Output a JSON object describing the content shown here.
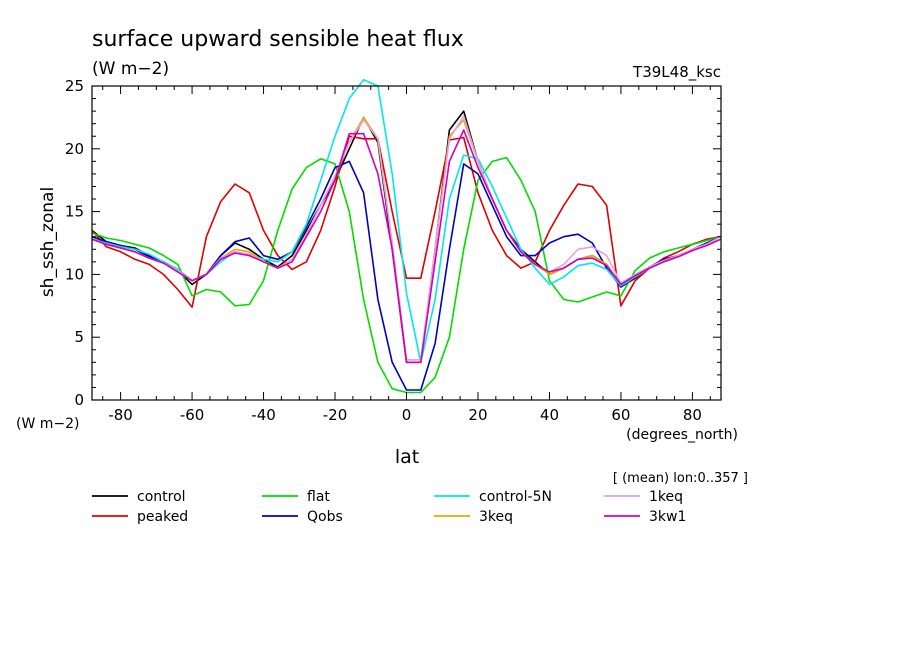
{
  "header": {
    "title": "surface upward sensible heat flux",
    "units": "(W m−2)",
    "experiment": "T39L48_ksc"
  },
  "axes": {
    "y_name": "sh_ssh_zonal",
    "y_units": "(W m−2)",
    "x_name": "lat",
    "x_units": "(degrees_north)"
  },
  "footnote": "[ (mean) lon:0..357 ]",
  "chart_data": {
    "type": "line",
    "title": "surface upward sensible heat flux",
    "subtitle": "(W m−2)",
    "xlabel": "lat",
    "ylabel": "sh_ssh_zonal",
    "xlim": [
      -88,
      88
    ],
    "ylim": [
      0,
      25
    ],
    "x_ticks": [
      -80,
      -60,
      -40,
      -20,
      0,
      20,
      40,
      60,
      80
    ],
    "y_ticks": [
      0,
      5,
      10,
      15,
      20,
      25
    ],
    "grid": false,
    "legend_position": "bottom",
    "x": [
      -88,
      -84,
      -80,
      -76,
      -72,
      -68,
      -64,
      -60,
      -56,
      -52,
      -48,
      -44,
      -40,
      -36,
      -32,
      -28,
      -24,
      -20,
      -16,
      -12,
      -8,
      -4,
      0,
      4,
      8,
      12,
      16,
      20,
      24,
      28,
      32,
      36,
      40,
      44,
      48,
      52,
      56,
      60,
      64,
      68,
      72,
      76,
      80,
      84,
      88
    ],
    "series": [
      {
        "name": "control",
        "color": "#000000",
        "values": [
          13.5,
          12.6,
          12.3,
          12.1,
          11.5,
          11.0,
          10.3,
          9.2,
          10.0,
          11.5,
          12.5,
          12.0,
          11.2,
          10.6,
          11.5,
          13.5,
          15.5,
          17.5,
          20.0,
          22.5,
          20.5,
          12.0,
          3.0,
          3.0,
          12.0,
          21.5,
          23.0,
          19.0,
          16.0,
          13.5,
          12.0,
          11.0,
          10.0,
          10.5,
          11.2,
          11.5,
          10.8,
          9.0,
          9.7,
          10.6,
          11.0,
          11.4,
          11.9,
          12.4,
          13.0
        ]
      },
      {
        "name": "peaked",
        "color": "#e00000",
        "values": [
          13.5,
          12.2,
          11.8,
          11.2,
          10.8,
          10.0,
          8.8,
          7.4,
          13.0,
          15.8,
          17.2,
          16.5,
          13.5,
          11.5,
          10.4,
          11.0,
          13.5,
          17.0,
          21.0,
          20.8,
          20.8,
          15.0,
          9.7,
          9.7,
          15.0,
          20.7,
          20.9,
          16.5,
          13.5,
          11.5,
          10.5,
          11.0,
          13.5,
          15.5,
          17.2,
          17.0,
          15.5,
          7.5,
          9.5,
          10.5,
          11.3,
          11.8,
          12.4,
          12.8,
          13.0
        ]
      },
      {
        "name": "flat",
        "color": "#00dd00",
        "values": [
          13.3,
          12.9,
          12.7,
          12.4,
          12.1,
          11.5,
          10.8,
          8.3,
          8.8,
          8.6,
          7.5,
          7.6,
          9.5,
          13.5,
          16.8,
          18.5,
          19.2,
          18.8,
          15.0,
          8.0,
          3.0,
          0.9,
          0.6,
          0.6,
          1.8,
          5.0,
          12.0,
          17.5,
          19.0,
          19.3,
          17.5,
          15.0,
          9.5,
          8.0,
          7.8,
          8.2,
          8.6,
          8.3,
          10.3,
          11.3,
          11.8,
          12.1,
          12.4,
          12.7,
          13.0
        ]
      },
      {
        "name": "Qobs",
        "color": "#0000c0",
        "values": [
          13.0,
          12.6,
          12.3,
          12.0,
          11.4,
          11.0,
          10.4,
          9.5,
          10.0,
          11.5,
          12.6,
          12.9,
          11.5,
          11.2,
          11.8,
          13.8,
          16.0,
          18.5,
          19.0,
          16.5,
          8.0,
          3.0,
          0.8,
          0.8,
          4.5,
          12.0,
          18.8,
          18.0,
          15.5,
          13.0,
          11.5,
          11.5,
          12.5,
          13.0,
          13.2,
          12.5,
          10.5,
          9.0,
          9.8,
          10.6,
          11.2,
          11.5,
          12.0,
          12.5,
          13.0
        ]
      },
      {
        "name": "control-5N",
        "color": "#00e8e8",
        "values": [
          12.8,
          12.5,
          12.2,
          12.0,
          11.6,
          11.0,
          10.4,
          9.5,
          10.0,
          11.0,
          11.8,
          11.6,
          11.2,
          11.0,
          11.8,
          14.0,
          17.5,
          21.0,
          24.0,
          25.5,
          25.0,
          18.0,
          8.5,
          3.0,
          8.0,
          16.0,
          19.5,
          19.2,
          17.0,
          14.5,
          12.0,
          10.5,
          9.2,
          9.8,
          10.7,
          10.9,
          10.4,
          9.1,
          9.8,
          10.5,
          11.0,
          11.4,
          11.9,
          12.4,
          13.0
        ]
      },
      {
        "name": "3keq",
        "color": "#e8a800",
        "values": [
          12.8,
          12.4,
          12.1,
          11.8,
          11.3,
          10.9,
          10.3,
          9.5,
          10.0,
          11.3,
          12.0,
          11.8,
          11.0,
          10.5,
          11.2,
          13.2,
          15.5,
          17.8,
          20.5,
          22.5,
          20.8,
          12.5,
          3.2,
          3.2,
          12.0,
          21.0,
          22.3,
          19.0,
          16.0,
          13.5,
          11.8,
          10.8,
          10.0,
          10.5,
          11.2,
          11.5,
          10.8,
          9.2,
          9.9,
          10.6,
          11.1,
          11.5,
          12.0,
          12.4,
          13.0
        ]
      },
      {
        "name": "1keq",
        "color": "#e8a0e0",
        "values": [
          12.8,
          12.4,
          12.1,
          11.8,
          11.3,
          10.9,
          10.3,
          9.5,
          10.0,
          11.3,
          11.8,
          11.6,
          11.0,
          10.5,
          11.2,
          13.2,
          15.5,
          17.8,
          20.5,
          22.3,
          20.8,
          12.5,
          3.2,
          3.2,
          12.0,
          20.8,
          22.6,
          19.0,
          16.0,
          13.5,
          11.8,
          10.8,
          10.2,
          10.8,
          12.0,
          12.2,
          11.5,
          9.3,
          10.0,
          10.6,
          11.1,
          11.5,
          12.0,
          12.4,
          13.0
        ]
      },
      {
        "name": "3kw1",
        "color": "#d000c0",
        "values": [
          12.8,
          12.4,
          12.1,
          11.8,
          11.3,
          10.9,
          10.2,
          9.5,
          10.0,
          11.2,
          11.7,
          11.5,
          11.0,
          10.5,
          11.0,
          13.0,
          15.0,
          17.5,
          21.2,
          21.2,
          18.0,
          12.0,
          3.0,
          3.0,
          11.0,
          19.0,
          21.5,
          18.5,
          16.0,
          13.5,
          11.8,
          10.8,
          10.2,
          10.5,
          11.2,
          11.3,
          10.7,
          9.2,
          9.9,
          10.5,
          11.0,
          11.4,
          11.9,
          12.3,
          12.8
        ]
      }
    ]
  }
}
